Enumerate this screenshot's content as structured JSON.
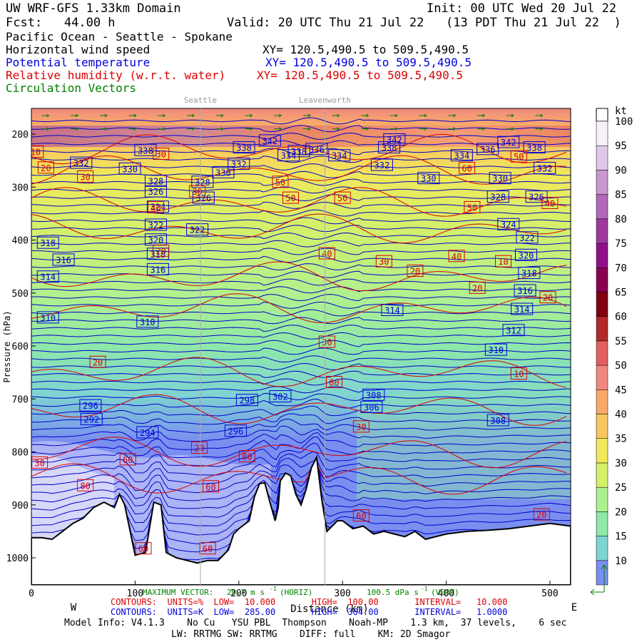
{
  "header": {
    "model": "UW WRF-GFS 1.33km Domain",
    "init": "Init: 00 UTC Wed 20 Jul 22",
    "fcst": "Fcst:   44.00 h",
    "valid": "Valid: 20 UTC Thu 21 Jul 22   (13 PDT Thu 21 Jul 22  )",
    "region": "Pacific Ocean - Seattle - Spokane",
    "wind_label": "Horizontal wind speed",
    "wind_xy": "XY= 120.5,490.5 to 509.5,490.5",
    "theta_label": "Potential temperature",
    "theta_xy": "XY= 120.5,490.5 to 509.5,490.5",
    "rh_label": "Relative humidity (w.r.t. water)",
    "rh_xy": "XY= 120.5,490.5 to 509.5,490.5",
    "vec_label": "Circulation Vectors",
    "colors": {
      "black": "#000000",
      "blue": "#0000dd",
      "red": "#dd0000",
      "green": "#008000"
    }
  },
  "chart_data": {
    "type": "heatmap",
    "xlabel": "Distance (km)",
    "ylabel": "Pressure (hPa)",
    "xlim": [
      0,
      520
    ],
    "ylim": [
      1050,
      150
    ],
    "xticks": [
      0,
      100,
      200,
      300,
      400,
      500
    ],
    "yticks": [
      200,
      300,
      400,
      500,
      600,
      700,
      800,
      900,
      1000
    ],
    "west_label": "W",
    "east_label": "E",
    "locations": [
      {
        "name": "Seattle",
        "x": 163
      },
      {
        "name": "Leavenworth",
        "x": 283
      }
    ],
    "colorbar": {
      "unit": "kt",
      "levels": [
        10,
        15,
        20,
        25,
        30,
        35,
        40,
        45,
        50,
        55,
        60,
        65,
        70,
        75,
        80,
        85,
        90,
        95,
        100
      ],
      "colors": [
        "#7a8ef0",
        "#7fd4d0",
        "#8ee8a8",
        "#aef090",
        "#d4f06a",
        "#f0e85a",
        "#f8c860",
        "#f8a86a",
        "#f08880",
        "#e06060",
        "#b02828",
        "#800010",
        "#880050",
        "#901088",
        "#a038a0",
        "#b068b8",
        "#c898d0",
        "#e0c8e8",
        "#f8f0f8"
      ]
    },
    "terrain": {
      "x": [
        0,
        10,
        20,
        30,
        40,
        50,
        60,
        70,
        80,
        85,
        90,
        100,
        110,
        118,
        125,
        130,
        140,
        150,
        160,
        170,
        180,
        190,
        195,
        200,
        210,
        215,
        220,
        225,
        230,
        235,
        238,
        240,
        245,
        250,
        255,
        260,
        265,
        270,
        275,
        280,
        285,
        290,
        295,
        300,
        310,
        320,
        330,
        340,
        350,
        360,
        370,
        380,
        390,
        400,
        420,
        440,
        460,
        480,
        500,
        520
      ],
      "p": [
        962,
        962,
        965,
        950,
        935,
        925,
        905,
        895,
        905,
        880,
        900,
        995,
        990,
        895,
        900,
        990,
        1000,
        1005,
        1010,
        1005,
        1005,
        985,
        955,
        945,
        930,
        885,
        860,
        858,
        895,
        930,
        905,
        855,
        840,
        845,
        880,
        900,
        870,
        830,
        810,
        890,
        950,
        940,
        930,
        930,
        945,
        940,
        955,
        950,
        955,
        960,
        950,
        965,
        960,
        955,
        950,
        948,
        945,
        940,
        935,
        940
      ]
    },
    "theta_isentropes": {
      "unit": "K",
      "low": 285,
      "high": 364,
      "interval": 1,
      "label_values": [
        296,
        298,
        302,
        306,
        308,
        310,
        312,
        314,
        316,
        318,
        320,
        322,
        324,
        326,
        328,
        330,
        332,
        334,
        336,
        338,
        340,
        342
      ]
    },
    "rh_contours": {
      "unit": "%",
      "low": 10,
      "high": 100,
      "interval": 10,
      "label_values": [
        10,
        20,
        30,
        40,
        50,
        60,
        70,
        80,
        90
      ]
    },
    "max_vector": {
      "label": "MAXIMUM VECTOR:",
      "horiz": "20.7 m s",
      "horiz_unit": "-1",
      "horiz_tag": "(HORIZ)",
      "vert": "100.5 dPa s",
      "vert_unit": "-1",
      "vert_tag": "(VERT)"
    }
  },
  "footer": {
    "rh_line": "CONTOURS:  UNITS=%  LOW=  10.000       HIGH=  100.00       INTERVAL=   10.000",
    "theta_line": "CONTOURS:  UNITS=K  LOW=  285.00       HIGH=  364.00       INTERVAL=   1.0000",
    "model_info": "Model Info: V4.1.3    No Cu   YSU PBL  Thompson    Noah-MP    1.3 km,  37 levels,    6 sec",
    "model_info2": "LW: RRTMG SW: RRTMG    DIFF: full    KM: 2D Smagor"
  }
}
